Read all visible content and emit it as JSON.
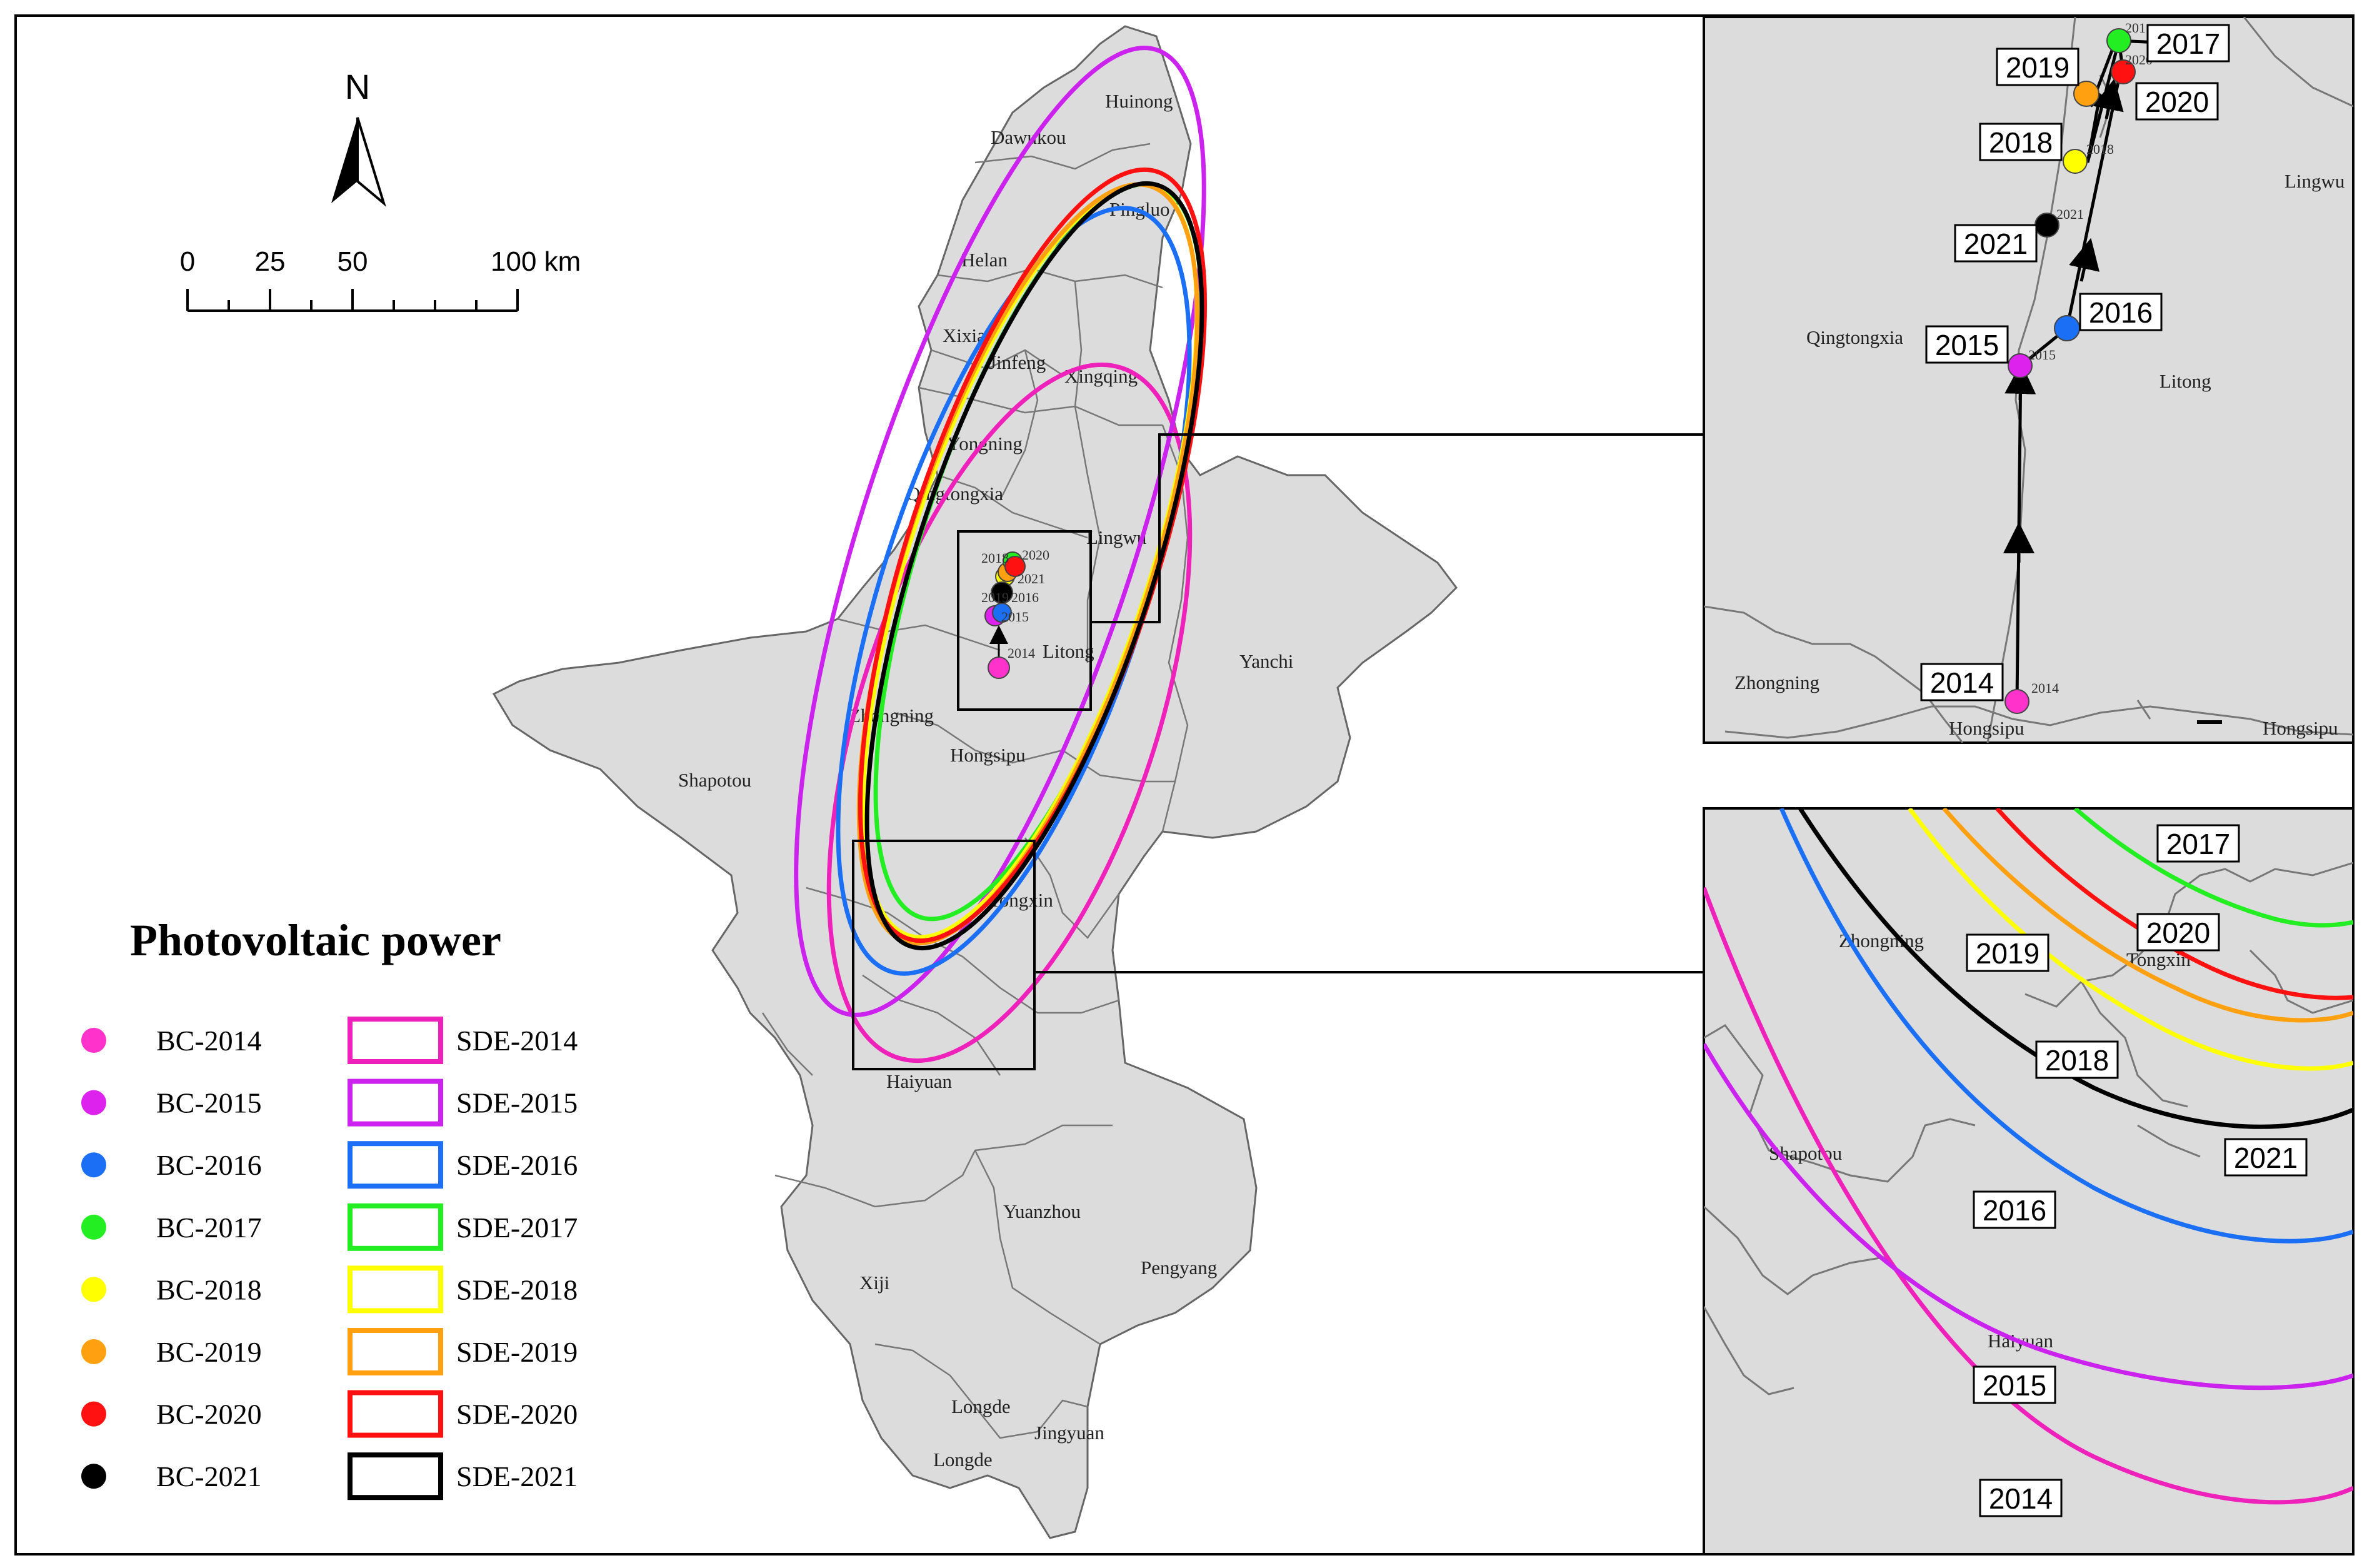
{
  "north_label": "N",
  "scale_bar": {
    "ticks": [
      "0",
      "25",
      "50",
      "100 km"
    ]
  },
  "legend": {
    "title": "Photovoltaic power",
    "points": [
      {
        "label": "BC-2014",
        "color": "#ff33cc"
      },
      {
        "label": "BC-2015",
        "color": "#dd22ee"
      },
      {
        "label": "BC-2016",
        "color": "#1a6ff5"
      },
      {
        "label": "BC-2017",
        "color": "#22ee22"
      },
      {
        "label": "BC-2018",
        "color": "#ffff00"
      },
      {
        "label": "BC-2019",
        "color": "#ffa010"
      },
      {
        "label": "BC-2020",
        "color": "#ff1111"
      },
      {
        "label": "BC-2021",
        "color": "#000000"
      }
    ],
    "ellipses": [
      {
        "label": "SDE-2014",
        "color": "#ee22bb"
      },
      {
        "label": "SDE-2015",
        "color": "#cc22ee"
      },
      {
        "label": "SDE-2016",
        "color": "#1a6ff5"
      },
      {
        "label": "SDE-2017",
        "color": "#22ee22"
      },
      {
        "label": "SDE-2018",
        "color": "#ffff00"
      },
      {
        "label": "SDE-2019",
        "color": "#ffa010"
      },
      {
        "label": "SDE-2020",
        "color": "#ff1111"
      },
      {
        "label": "SDE-2021",
        "color": "#000000"
      }
    ]
  },
  "main_map_places": [
    "Huinong",
    "Dawukou",
    "Pingluo",
    "Helan",
    "Xixia",
    "Jinfeng",
    "Xingqing",
    "Yongning",
    "Qingtongxia",
    "Lingwu",
    "Litong",
    "Yanchi",
    "Zhongning",
    "Hongsipu",
    "Shapotou",
    "Tongxin",
    "Haiyuan",
    "Yuanzhou",
    "Xiji",
    "Pengyang",
    "Longde",
    "Jingyuan",
    "Longde"
  ],
  "main_map_year_marks": [
    "2014",
    "2015",
    "2016",
    "2017",
    "2018",
    "2019",
    "2020",
    "2021"
  ],
  "inset_centers": {
    "places": [
      "Lingwu",
      "Qingtongxia",
      "Litong",
      "Zhongning",
      "Hongsipu",
      "Hongsipu"
    ],
    "labels": [
      "2017",
      "2019",
      "2020",
      "2018",
      "2021",
      "2016",
      "2015",
      "2014"
    ],
    "small_labels": [
      "2014",
      "2015",
      "2018",
      "2020",
      "2021",
      "201"
    ]
  },
  "inset_ellipses": {
    "places": [
      "Zhongning",
      "Tongxin",
      "Shapotou",
      "Haiyuan"
    ],
    "labels": [
      "2017",
      "2020",
      "2019",
      "2018",
      "2021",
      "2016",
      "2015",
      "2014"
    ]
  }
}
